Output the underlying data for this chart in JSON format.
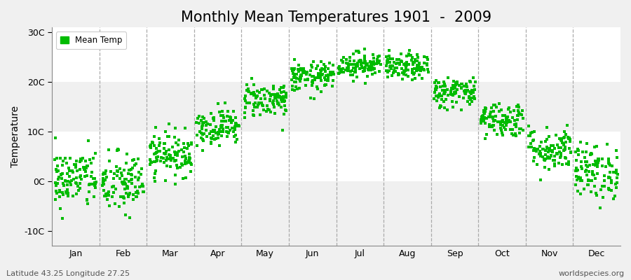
{
  "title": "Monthly Mean Temperatures 1901  -  2009",
  "ylabel": "Temperature",
  "xlabel_labels": [
    "Jan",
    "Feb",
    "Mar",
    "Apr",
    "May",
    "Jun",
    "Jul",
    "Aug",
    "Sep",
    "Oct",
    "Nov",
    "Dec"
  ],
  "yticks": [
    -10,
    0,
    10,
    20,
    30
  ],
  "ytick_labels": [
    "-10C",
    "0C",
    "10C",
    "20C",
    "30C"
  ],
  "ylim": [
    -13,
    31
  ],
  "xlim": [
    0,
    12
  ],
  "legend_label": "Mean Temp",
  "dot_color": "#00bb00",
  "fig_background_color": "#f0f0f0",
  "plot_background_color": "#ffffff",
  "bottom_left_text": "Latitude 43.25 Longitude 27.25",
  "bottom_right_text": "worldspecies.org",
  "title_fontsize": 15,
  "n_years": 109,
  "monthly_means": [
    0.5,
    -0.5,
    5.5,
    11.0,
    16.5,
    21.0,
    23.5,
    23.0,
    18.0,
    12.5,
    6.5,
    2.0
  ],
  "monthly_stds": [
    3.0,
    3.2,
    2.2,
    1.8,
    1.8,
    1.5,
    1.3,
    1.3,
    1.6,
    1.8,
    2.2,
    2.8
  ]
}
